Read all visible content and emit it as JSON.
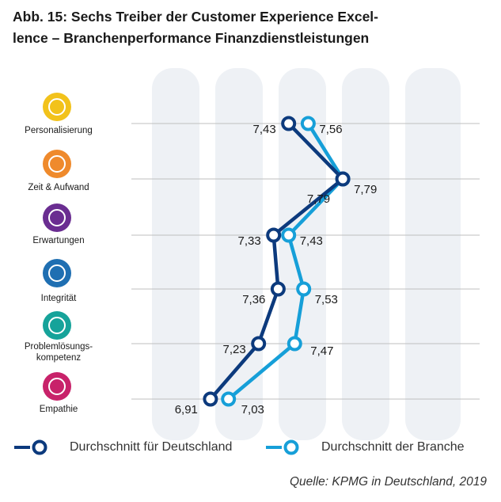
{
  "title": "Abb. 15: Sechs Treiber der Customer Experience Excel-\nlence – Branchenperformance Finanzdienstleistungen",
  "source": "Quelle: KPMG in Deutschland, 2019",
  "colors": {
    "deutschland": "#0c3a7d",
    "branche": "#169fd8",
    "grid": "#bfbfbf",
    "watermark": "#eef1f5"
  },
  "chart_data": {
    "type": "line",
    "orientation": "horizontal-values",
    "categories": [
      "Personalisierung",
      "Zeit & Aufwand",
      "Erwartungen",
      "Integrität",
      "Problemlösungs-\nkompetenz",
      "Empathie"
    ],
    "category_icons": [
      {
        "name": "personalisierung-icon",
        "color": "#f2c21b",
        "text": ""
      },
      {
        "name": "zeit-aufwand-icon",
        "color": "#ef8a2c",
        "text": ""
      },
      {
        "name": "erwartungen-icon",
        "color": "#6a2d91",
        "text": ""
      },
      {
        "name": "integritaet-icon",
        "color": "#1f6fb2",
        "text": ""
      },
      {
        "name": "problemloesung-icon",
        "color": "#16a39a",
        "text": ""
      },
      {
        "name": "empathie-icon",
        "color": "#c8226a",
        "text": ""
      }
    ],
    "series": [
      {
        "name": "Durchschnitt für Deutschland",
        "values": [
          7.43,
          7.79,
          7.33,
          7.36,
          7.23,
          6.91
        ],
        "labels": [
          "7,43",
          "7,79",
          "7,33",
          "7,36",
          "7,23",
          "6,91"
        ]
      },
      {
        "name": "Durchschnitt der Branche",
        "values": [
          7.56,
          7.79,
          7.43,
          7.53,
          7.47,
          7.03
        ],
        "labels": [
          "7,56",
          "7,79",
          "7,43",
          "7,53",
          "7,47",
          "7,03"
        ]
      }
    ]
  }
}
